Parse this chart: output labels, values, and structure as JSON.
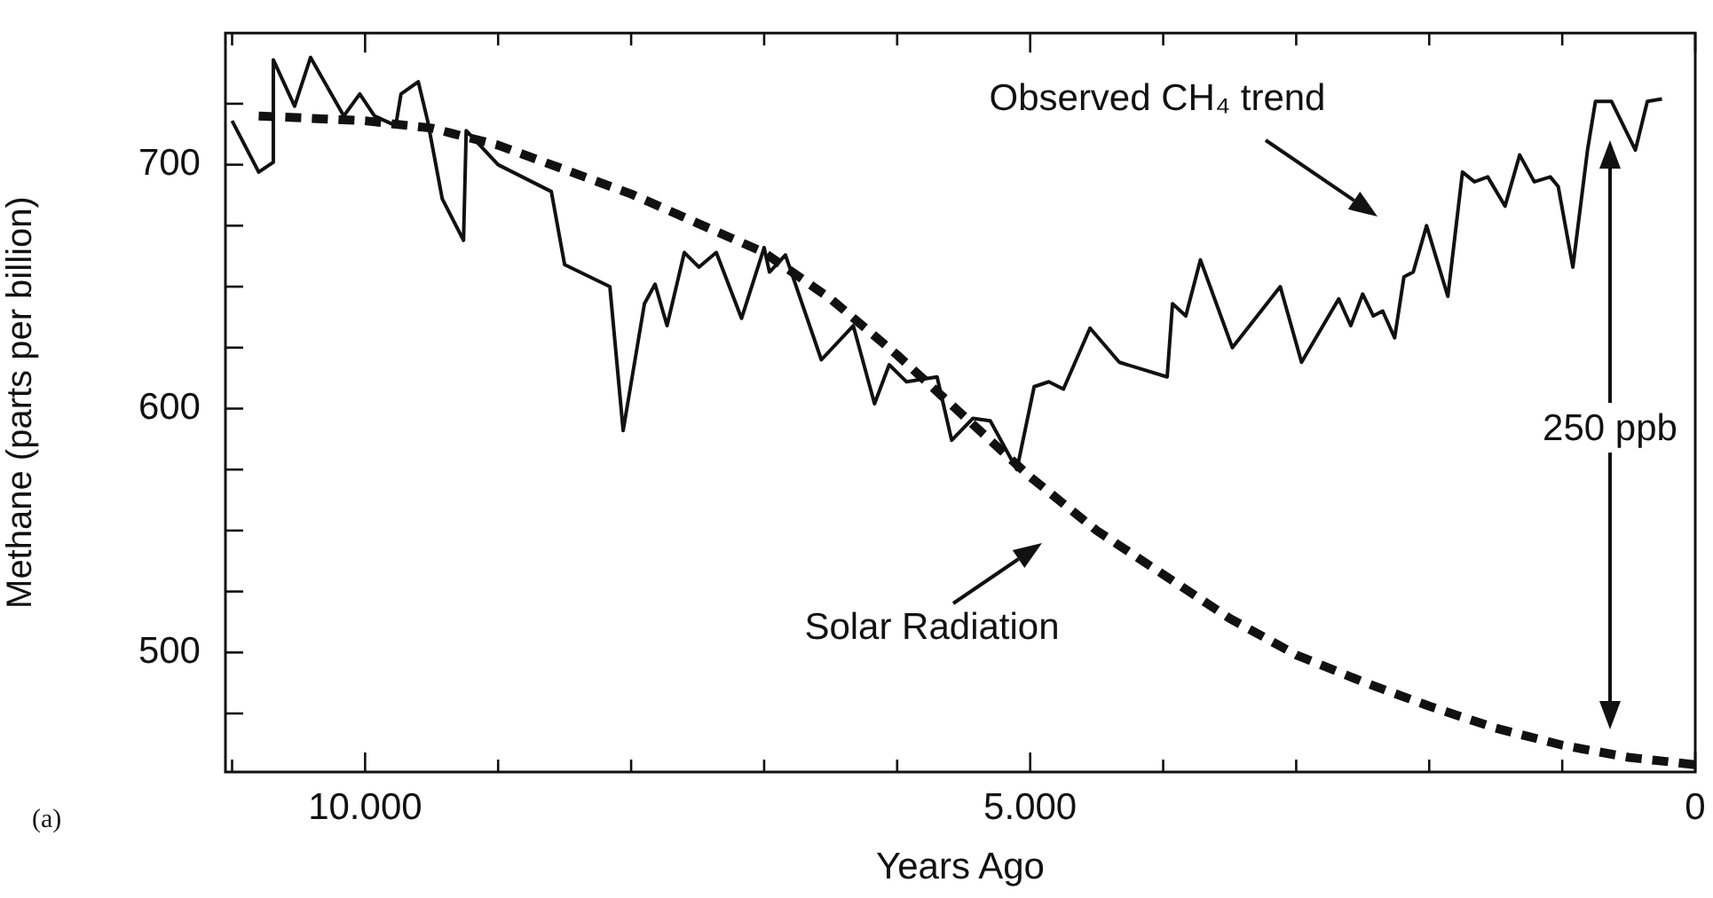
{
  "chart_data": {
    "type": "line",
    "xlabel": "Years Ago",
    "ylabel": "Methane (parts per billion)",
    "xlim": [
      11050,
      0
    ],
    "ylim": [
      451,
      754
    ],
    "xticks": [
      {
        "value": 11000,
        "label": null
      },
      {
        "value": 10000,
        "label": "10.000"
      },
      {
        "value": 9000,
        "label": null
      },
      {
        "value": 8000,
        "label": null
      },
      {
        "value": 7000,
        "label": null
      },
      {
        "value": 6000,
        "label": null
      },
      {
        "value": 5000,
        "label": "5.000"
      },
      {
        "value": 4000,
        "label": null
      },
      {
        "value": 3000,
        "label": null
      },
      {
        "value": 2000,
        "label": null
      },
      {
        "value": 1000,
        "label": null
      },
      0
    ],
    "yticks": [
      {
        "value": 475,
        "label": null
      },
      500,
      {
        "value": 525,
        "label": null
      },
      {
        "value": 550,
        "label": null
      },
      {
        "value": 575,
        "label": null
      },
      600,
      {
        "value": 625,
        "label": null
      },
      {
        "value": 650,
        "label": null
      },
      {
        "value": 675,
        "label": null
      },
      700,
      {
        "value": 725,
        "label": null
      }
    ],
    "grid": false,
    "legend": false,
    "marker": "none",
    "series": [
      {
        "color": "#111111",
        "line_style": "solid",
        "x": [
          11000,
          10800,
          10690,
          10690,
          10530,
          10410,
          10160,
          10040,
          9930,
          9770,
          9730,
          9600,
          9530,
          9420,
          9260,
          9240,
          9000,
          8600,
          8500,
          8160,
          8060,
          7900,
          7820,
          7730,
          7600,
          7490,
          7360,
          7170,
          7000,
          6960,
          6840,
          6570,
          6330,
          6170,
          6060,
          5930,
          5700,
          5590,
          5430,
          5300,
          5100,
          4970,
          4860,
          4750,
          4550,
          4330,
          3970,
          3930,
          3830,
          3720,
          3480,
          3120,
          2960,
          2680,
          2590,
          2500,
          2420,
          2350,
          2260,
          2190,
          2120,
          2020,
          1860,
          1750,
          1660,
          1560,
          1430,
          1320,
          1210,
          1090,
          1030,
          920,
          810,
          750,
          630,
          450,
          360,
          250
        ],
        "values": [
          718,
          697,
          701,
          743,
          724,
          744,
          720,
          729,
          720,
          716,
          729,
          734,
          718,
          686,
          669,
          714,
          700,
          689,
          659,
          650,
          591,
          643,
          651,
          634,
          664,
          658,
          664,
          637,
          666,
          656,
          663,
          620,
          634,
          602,
          618,
          611,
          613,
          587,
          596,
          595,
          575,
          609,
          611,
          608,
          633,
          619,
          613,
          643,
          638,
          661,
          625,
          650,
          619,
          645,
          634,
          647,
          638,
          640,
          629,
          654,
          656,
          675,
          646,
          697,
          693,
          695,
          683,
          704,
          693,
          695,
          691,
          658,
          706,
          726,
          726,
          706,
          726,
          727
        ]
      },
      {
        "color": "#111111",
        "line_style": "dashed",
        "x": [
          10800,
          10000,
          9500,
          9000,
          8500,
          8000,
          7500,
          7000,
          6500,
          6000,
          5500,
          5000,
          4500,
          4000,
          3500,
          3000,
          2500,
          2000,
          1500,
          1000,
          500,
          0
        ],
        "values": [
          720,
          718,
          715,
          708,
          698,
          688,
          676,
          664,
          645,
          622,
          597,
          572,
          550,
          532,
          514,
          499,
          488,
          478,
          469,
          462,
          457,
          454
        ]
      }
    ],
    "annotations": [
      "Observed CH₄ trend",
      "Solar Radiation",
      "250 ppb",
      "(a)"
    ]
  }
}
